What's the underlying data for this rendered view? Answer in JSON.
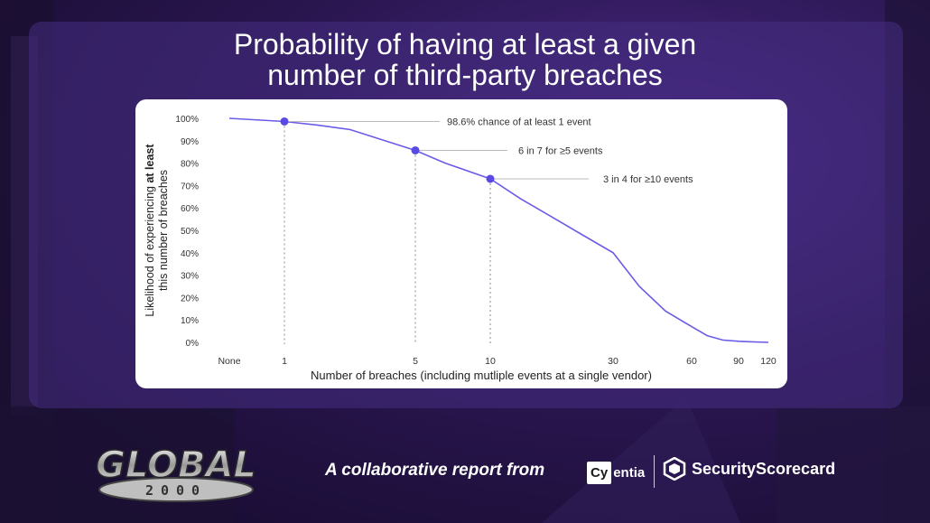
{
  "title": "Probability of having at least a given\nnumber of third-party breaches",
  "footer": {
    "brand_top": "GLOBAL",
    "brand_bottom": "2000",
    "tagline": "A collaborative report from",
    "cyentia_box": "Cy",
    "cyentia_rest": "entia",
    "securityscorecard": "SecurityScorecard"
  },
  "chart_data": {
    "type": "line",
    "xlabel": "Number of breaches (including mutliple events at a single vendor)",
    "ylabel_line1_normal": "Likelihood of experiencing ",
    "ylabel_line1_bold": "at least",
    "ylabel_line2": "this number of breaches",
    "x_ticks": [
      "None",
      "1",
      "5",
      "10",
      "30",
      "60",
      "90",
      "120"
    ],
    "y_ticks": [
      "100%",
      "90%",
      "80%",
      "70%",
      "60%",
      "50%",
      "40%",
      "30%",
      "20%",
      "10%",
      "0%"
    ],
    "ylim": [
      0,
      100
    ],
    "series": [
      {
        "x": [
          0,
          1,
          2,
          3,
          5,
          7,
          10,
          15,
          20,
          25,
          30,
          40,
          50,
          60,
          70,
          80,
          90,
          100,
          120
        ],
        "y": [
          100,
          98.6,
          97,
          95,
          85.7,
          80,
          73,
          64,
          56,
          48,
          40,
          25,
          14,
          7,
          3,
          1,
          0.5,
          0.3,
          0
        ]
      }
    ],
    "highlighted_points": [
      {
        "x": 1,
        "y": 98.6,
        "label": "98.6% chance of at least 1 event"
      },
      {
        "x": 5,
        "y": 85.7,
        "label": "6 in 7 for ≥5 events"
      },
      {
        "x": 10,
        "y": 73,
        "label": "3 in 4 for ≥10 events"
      }
    ],
    "line_color": "#6b5ce7",
    "point_color": "#5a4ae3",
    "grid": false
  }
}
